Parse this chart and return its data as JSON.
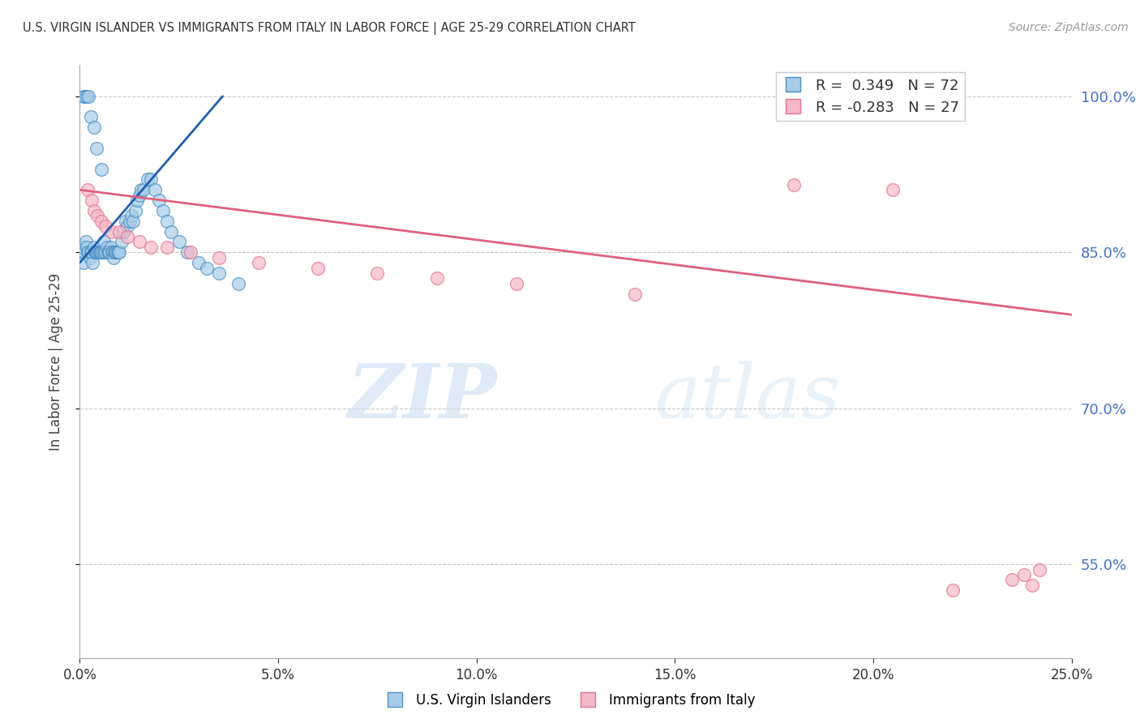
{
  "title": "U.S. VIRGIN ISLANDER VS IMMIGRANTS FROM ITALY IN LABOR FORCE | AGE 25-29 CORRELATION CHART",
  "source": "Source: ZipAtlas.com",
  "ylabel": "In Labor Force | Age 25-29",
  "x_min": 0.0,
  "x_max": 25.0,
  "y_min": 46.0,
  "y_max": 103.0,
  "yticks": [
    55.0,
    70.0,
    85.0,
    100.0
  ],
  "xticks": [
    0.0,
    5.0,
    10.0,
    15.0,
    20.0,
    25.0
  ],
  "blue_label": "U.S. Virgin Islanders",
  "pink_label": "Immigrants from Italy",
  "blue_R": 0.349,
  "blue_N": 72,
  "pink_R": -0.283,
  "pink_N": 27,
  "blue_color": "#a8cce8",
  "pink_color": "#f4b8c8",
  "blue_edge_color": "#4a90c4",
  "pink_edge_color": "#e87090",
  "blue_line_color": "#2060b0",
  "pink_line_color": "#e06080",
  "blue_scatter_x": [
    0.05,
    0.08,
    0.1,
    0.12,
    0.15,
    0.18,
    0.2,
    0.22,
    0.25,
    0.28,
    0.3,
    0.32,
    0.35,
    0.38,
    0.4,
    0.42,
    0.45,
    0.48,
    0.5,
    0.52,
    0.55,
    0.58,
    0.6,
    0.62,
    0.65,
    0.68,
    0.7,
    0.72,
    0.75,
    0.78,
    0.8,
    0.82,
    0.85,
    0.88,
    0.9,
    0.92,
    0.95,
    0.98,
    1.0,
    1.05,
    1.1,
    1.15,
    1.2,
    1.25,
    1.3,
    1.35,
    1.4,
    1.45,
    1.5,
    1.55,
    1.6,
    1.7,
    1.8,
    1.9,
    2.0,
    2.1,
    2.2,
    2.3,
    2.5,
    2.7,
    3.0,
    3.2,
    3.5,
    4.0,
    0.1,
    0.12,
    0.18,
    0.22,
    0.28,
    0.35,
    0.42,
    0.55
  ],
  "blue_scatter_y": [
    85.0,
    85.5,
    84.0,
    85.0,
    86.0,
    85.5,
    85.0,
    85.0,
    84.5,
    85.0,
    85.0,
    84.0,
    85.5,
    85.0,
    85.0,
    85.0,
    85.0,
    85.0,
    85.0,
    85.0,
    85.0,
    85.0,
    86.0,
    85.0,
    85.0,
    85.5,
    85.0,
    85.0,
    85.0,
    85.5,
    85.0,
    85.0,
    84.5,
    85.0,
    85.0,
    85.0,
    85.0,
    85.0,
    85.0,
    86.0,
    87.0,
    88.0,
    87.5,
    88.0,
    88.5,
    88.0,
    89.0,
    90.0,
    90.5,
    91.0,
    91.0,
    92.0,
    92.0,
    91.0,
    90.0,
    89.0,
    88.0,
    87.0,
    86.0,
    85.0,
    84.0,
    83.5,
    83.0,
    82.0,
    100.0,
    100.0,
    100.0,
    100.0,
    98.0,
    97.0,
    95.0,
    93.0
  ],
  "pink_scatter_x": [
    0.2,
    0.3,
    0.35,
    0.45,
    0.55,
    0.65,
    0.8,
    1.0,
    1.2,
    1.5,
    1.8,
    2.2,
    2.8,
    3.5,
    4.5,
    6.0,
    7.5,
    9.0,
    11.0,
    14.0,
    18.0,
    20.5,
    22.0,
    23.5,
    23.8,
    24.0,
    24.2
  ],
  "pink_scatter_y": [
    91.0,
    90.0,
    89.0,
    88.5,
    88.0,
    87.5,
    87.0,
    87.0,
    86.5,
    86.0,
    85.5,
    85.5,
    85.0,
    84.5,
    84.0,
    83.5,
    83.0,
    82.5,
    82.0,
    81.0,
    91.5,
    91.0,
    52.5,
    53.5,
    54.0,
    53.0,
    54.5
  ],
  "blue_line_x": [
    0.0,
    3.6
  ],
  "blue_line_y": [
    84.0,
    100.0
  ],
  "pink_line_x": [
    0.0,
    25.0
  ],
  "pink_line_y": [
    91.0,
    79.0
  ]
}
